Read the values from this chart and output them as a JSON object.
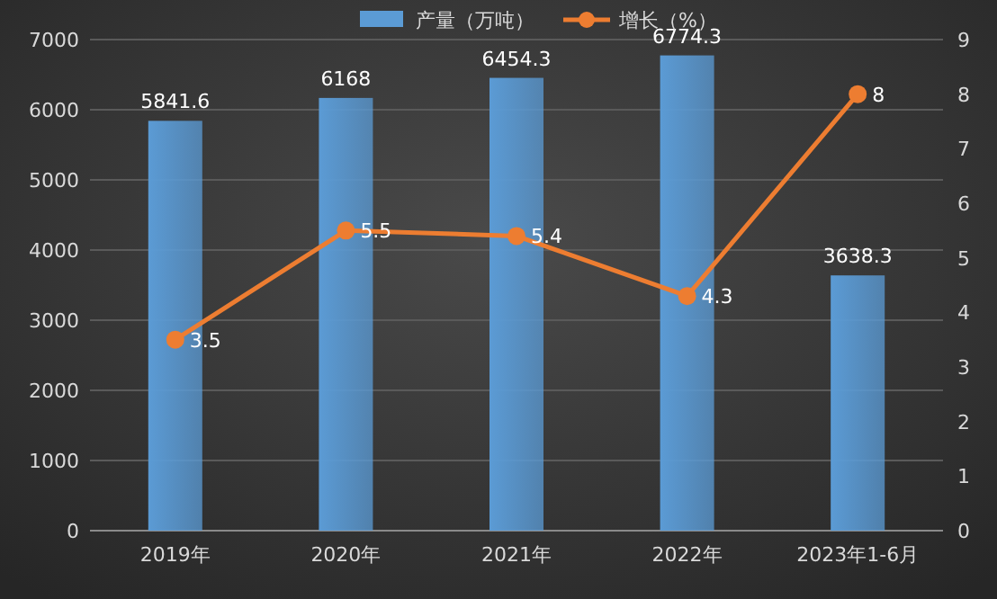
{
  "chart_data": {
    "type": "bar",
    "categories": [
      "2019年",
      "2020年",
      "2021年",
      "2022年",
      "2023年1-6月"
    ],
    "series": [
      {
        "name": "产量（万吨）",
        "color": "#5b9bd5",
        "values": [
          5841.6,
          6168,
          6454.3,
          6774.3,
          3638.3
        ]
      },
      {
        "name": "增长（%）",
        "type": "line",
        "axis": "y2",
        "color": "#ed7d31",
        "values": [
          3.5,
          5.5,
          5.4,
          4.3,
          8
        ]
      }
    ],
    "ylim": [
      0,
      7000
    ],
    "yticks": [
      0,
      1000,
      2000,
      3000,
      4000,
      5000,
      6000,
      7000
    ],
    "y2lim": [
      0,
      9
    ],
    "y2ticks": [
      0,
      1,
      2,
      3,
      4,
      5,
      6,
      7,
      8,
      9
    ],
    "grid": "y",
    "legend": "top",
    "marker": "circle",
    "data_labels": true
  }
}
